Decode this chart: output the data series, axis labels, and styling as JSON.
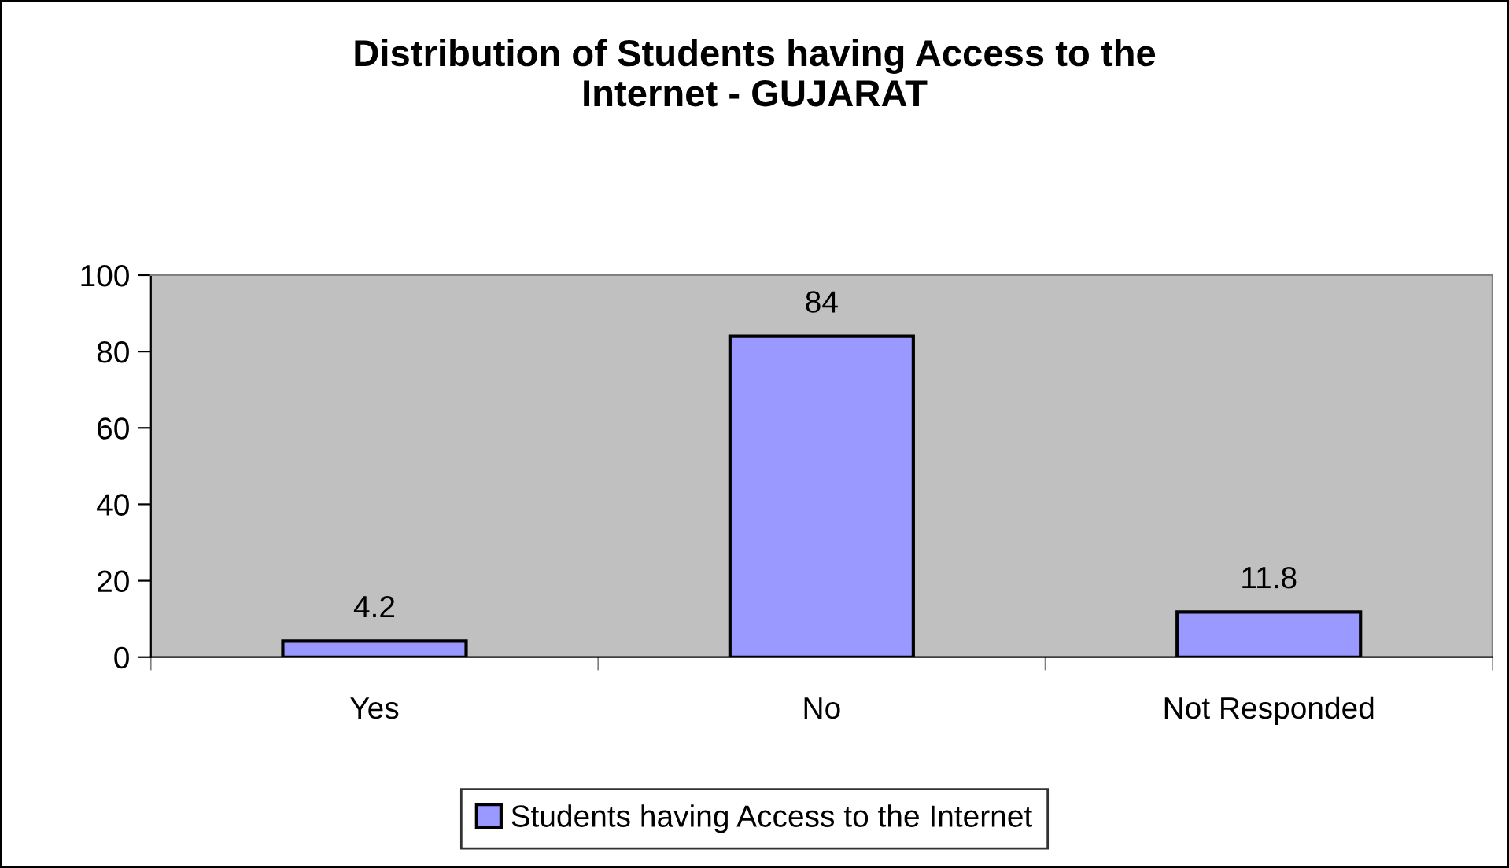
{
  "chart_data": {
    "type": "bar",
    "title": "Distribution of Students having Access to the\nInternet - GUJARAT",
    "categories": [
      "Yes",
      "No",
      "Not Responded"
    ],
    "series": [
      {
        "name": "Students having Access to the Internet",
        "color": "#9999ff",
        "values": [
          4.2,
          84,
          11.8
        ]
      }
    ],
    "ylim": [
      0,
      100
    ],
    "yticks": [
      0,
      20,
      40,
      60,
      80,
      100
    ],
    "grid": false,
    "legend": "bottom",
    "data_labels": true
  }
}
